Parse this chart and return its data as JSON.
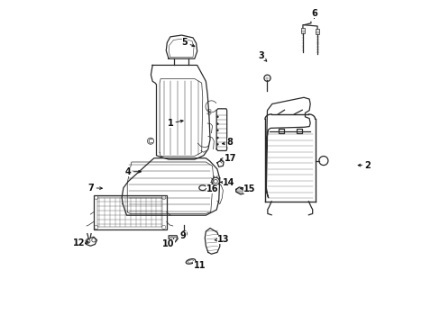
{
  "bg_color": "#ffffff",
  "fig_width": 4.89,
  "fig_height": 3.6,
  "dpi": 100,
  "line_color": "#2a2a2a",
  "label_positions": {
    "1": [
      0.345,
      0.62,
      0.395,
      0.63
    ],
    "2": [
      0.955,
      0.49,
      0.915,
      0.49
    ],
    "3": [
      0.625,
      0.83,
      0.645,
      0.81
    ],
    "4": [
      0.215,
      0.47,
      0.265,
      0.47
    ],
    "5": [
      0.39,
      0.87,
      0.43,
      0.855
    ],
    "6": [
      0.79,
      0.96,
      0.79,
      0.945
    ],
    "7": [
      0.1,
      0.42,
      0.145,
      0.418
    ],
    "8": [
      0.53,
      0.56,
      0.495,
      0.555
    ],
    "9": [
      0.385,
      0.27,
      0.39,
      0.285
    ],
    "10": [
      0.34,
      0.245,
      0.352,
      0.263
    ],
    "11": [
      0.435,
      0.18,
      0.412,
      0.188
    ],
    "12": [
      0.062,
      0.25,
      0.095,
      0.252
    ],
    "13": [
      0.51,
      0.26,
      0.48,
      0.258
    ],
    "14": [
      0.525,
      0.435,
      0.498,
      0.438
    ],
    "15": [
      0.59,
      0.415,
      0.56,
      0.418
    ],
    "16": [
      0.475,
      0.415,
      0.453,
      0.418
    ],
    "17": [
      0.53,
      0.51,
      0.497,
      0.508
    ]
  }
}
